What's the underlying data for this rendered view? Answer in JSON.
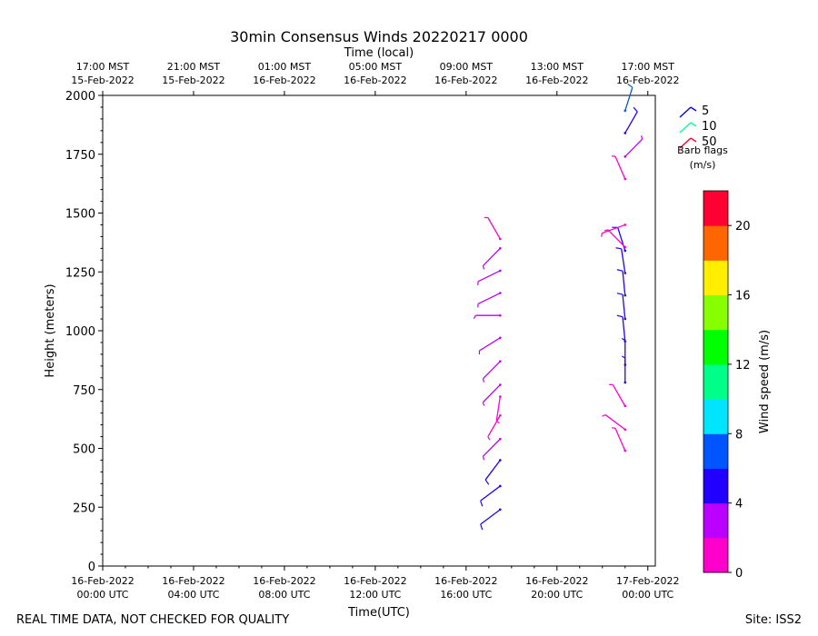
{
  "chart_data": {
    "type": "scatter",
    "title": "30min Consensus Winds 20220217 0000",
    "xlabel": "Time(UTC)",
    "ylabel": "Height (meters)",
    "top_xlabel": "Time (local)",
    "xlim_hours": [
      0,
      24.33
    ],
    "ylim": [
      0,
      2000
    ],
    "yticks": [
      0,
      250,
      500,
      750,
      1000,
      1250,
      1500,
      1750,
      2000
    ],
    "bottom_ticks": [
      {
        "hour": 0,
        "line1": "16-Feb-2022",
        "line2": "00:00 UTC"
      },
      {
        "hour": 4,
        "line1": "16-Feb-2022",
        "line2": "04:00 UTC"
      },
      {
        "hour": 8,
        "line1": "16-Feb-2022",
        "line2": "08:00 UTC"
      },
      {
        "hour": 12,
        "line1": "16-Feb-2022",
        "line2": "12:00 UTC"
      },
      {
        "hour": 16,
        "line1": "16-Feb-2022",
        "line2": "16:00 UTC"
      },
      {
        "hour": 20,
        "line1": "16-Feb-2022",
        "line2": "20:00 UTC"
      },
      {
        "hour": 24,
        "line1": "17-Feb-2022",
        "line2": "00:00 UTC"
      }
    ],
    "top_ticks": [
      {
        "hour": 0,
        "line1": "17:00 MST",
        "line2": "15-Feb-2022"
      },
      {
        "hour": 4,
        "line1": "21:00 MST",
        "line2": "15-Feb-2022"
      },
      {
        "hour": 8,
        "line1": "01:00 MST",
        "line2": "16-Feb-2022"
      },
      {
        "hour": 12,
        "line1": "05:00 MST",
        "line2": "16-Feb-2022"
      },
      {
        "hour": 16,
        "line1": "09:00 MST",
        "line2": "16-Feb-2022"
      },
      {
        "hour": 20,
        "line1": "13:00 MST",
        "line2": "16-Feb-2022"
      },
      {
        "hour": 24,
        "line1": "17:00 MST",
        "line2": "16-Feb-2022"
      }
    ],
    "barbs": [
      {
        "hour": 17.5,
        "height": 240,
        "speed": 5,
        "dx": -0.8,
        "dy": -0.6
      },
      {
        "hour": 17.5,
        "height": 340,
        "speed": 5,
        "dx": -0.8,
        "dy": -0.6
      },
      {
        "hour": 17.5,
        "height": 450,
        "speed": 5,
        "dx": -0.6,
        "dy": -0.8
      },
      {
        "hour": 17.5,
        "height": 540,
        "speed": 3,
        "dx": -0.7,
        "dy": -0.71
      },
      {
        "hour": 17.5,
        "height": 640,
        "speed": 1.5,
        "dx": -0.5,
        "dy": -0.87
      },
      {
        "hour": 17.5,
        "height": 720,
        "speed": 1.5,
        "dx": -0.15,
        "dy": -0.99
      },
      {
        "hour": 17.5,
        "height": 770,
        "speed": 3,
        "dx": -0.7,
        "dy": -0.71
      },
      {
        "hour": 17.5,
        "height": 870,
        "speed": 3,
        "dx": -0.7,
        "dy": -0.71
      },
      {
        "hour": 17.5,
        "height": 970,
        "speed": 2,
        "dx": -0.85,
        "dy": -0.53
      },
      {
        "hour": 17.5,
        "height": 1065,
        "speed": 2,
        "dx": -1,
        "dy": 0
      },
      {
        "hour": 17.5,
        "height": 1160,
        "speed": 2,
        "dx": -0.9,
        "dy": -0.44
      },
      {
        "hour": 17.5,
        "height": 1255,
        "speed": 2,
        "dx": -0.9,
        "dy": -0.44
      },
      {
        "hour": 17.5,
        "height": 1350,
        "speed": 3,
        "dx": -0.7,
        "dy": -0.71
      },
      {
        "hour": 17.5,
        "height": 1390,
        "speed": 1.5,
        "dx": -0.5,
        "dy": 0.87
      },
      {
        "hour": 23,
        "height": 490,
        "speed": 1.5,
        "dx": -0.4,
        "dy": 0.92
      },
      {
        "hour": 23,
        "height": 580,
        "speed": 1.5,
        "dx": -0.8,
        "dy": 0.6
      },
      {
        "hour": 23,
        "height": 680,
        "speed": 1.5,
        "dx": -0.5,
        "dy": 0.87
      },
      {
        "hour": 23,
        "height": 780,
        "speed": 4,
        "dx": 0,
        "dy": 1
      },
      {
        "hour": 23,
        "height": 855,
        "speed": 4,
        "dx": 0,
        "dy": 1
      },
      {
        "hour": 23,
        "height": 955,
        "speed": 5,
        "dx": -0.1,
        "dy": 1
      },
      {
        "hour": 23,
        "height": 1050,
        "speed": 5,
        "dx": -0.1,
        "dy": 1
      },
      {
        "hour": 23,
        "height": 1150,
        "speed": 5,
        "dx": -0.1,
        "dy": 1
      },
      {
        "hour": 23,
        "height": 1245,
        "speed": 5,
        "dx": -0.15,
        "dy": 0.99
      },
      {
        "hour": 23,
        "height": 1340,
        "speed": 5,
        "dx": -0.3,
        "dy": 0.95
      },
      {
        "hour": 23,
        "height": 1355,
        "speed": 1.5,
        "dx": -0.7,
        "dy": 0.71
      },
      {
        "hour": 23,
        "height": 1450,
        "speed": 1.5,
        "dx": -0.94,
        "dy": -0.34
      },
      {
        "hour": 23,
        "height": 1645,
        "speed": 1.5,
        "dx": -0.4,
        "dy": 0.92
      },
      {
        "hour": 23,
        "height": 1740,
        "speed": 3,
        "dx": 0.7,
        "dy": 0.71
      },
      {
        "hour": 23,
        "height": 1840,
        "speed": 5,
        "dx": 0.5,
        "dy": 0.87
      },
      {
        "hour": 23,
        "height": 1935,
        "speed": 7,
        "dx": 0.3,
        "dy": 0.95
      }
    ],
    "legend": {
      "entries": [
        {
          "label": "5",
          "color": "#0000ff"
        },
        {
          "label": "10",
          "color": "#00ff99"
        },
        {
          "label": "50",
          "color": "#ff0033"
        }
      ],
      "caption_line1": "Barb flags",
      "caption_line2": "(m/s)"
    },
    "colorbar": {
      "label": "Wind speed (m/s)",
      "min": 0,
      "max": 22,
      "ticks": [
        0,
        4,
        8,
        12,
        16,
        20
      ],
      "colors": [
        "#ff00cc",
        "#bb00ff",
        "#2200ff",
        "#0055ff",
        "#00e5ff",
        "#00ff88",
        "#00ff00",
        "#88ff00",
        "#ffee00",
        "#ff6600",
        "#ff0033"
      ]
    }
  },
  "footer": {
    "disclaimer": "REAL TIME DATA, NOT CHECKED FOR QUALITY",
    "site": "Site: ISS2"
  }
}
